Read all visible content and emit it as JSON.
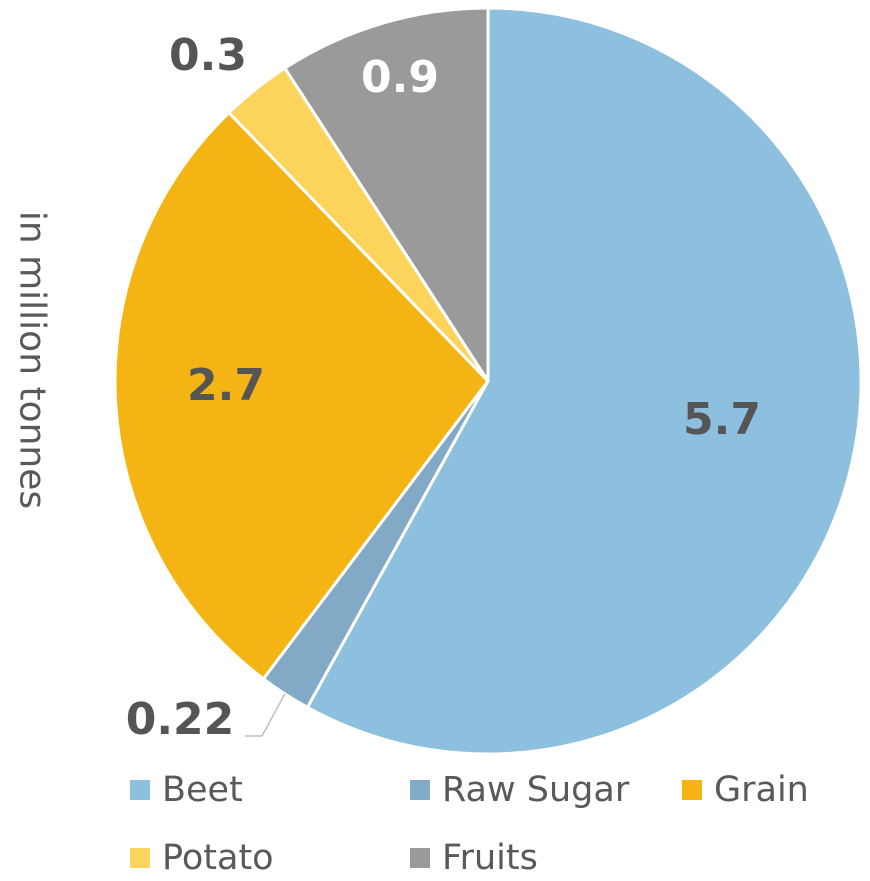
{
  "chart_data": {
    "type": "pie",
    "ylabel": "in million tonnes",
    "slices": [
      {
        "name": "Beet",
        "value": 5.7,
        "label": "5.7",
        "color": "#8dbfdf",
        "label_color": "#555555"
      },
      {
        "name": "Raw Sugar",
        "value": 0.22,
        "label": "0.22",
        "color": "#82aac6",
        "label_color": "#555555"
      },
      {
        "name": "Grain",
        "value": 2.7,
        "label": "2.7",
        "color": "#f4b414",
        "label_color": "#555555"
      },
      {
        "name": "Potato",
        "value": 0.3,
        "label": "0.3",
        "color": "#fcd45c",
        "label_color": "#555555"
      },
      {
        "name": "Fruits",
        "value": 0.9,
        "label": "0.9",
        "color": "#9a9a9a",
        "label_color": "#ffffff"
      }
    ],
    "legend_position": "bottom"
  }
}
